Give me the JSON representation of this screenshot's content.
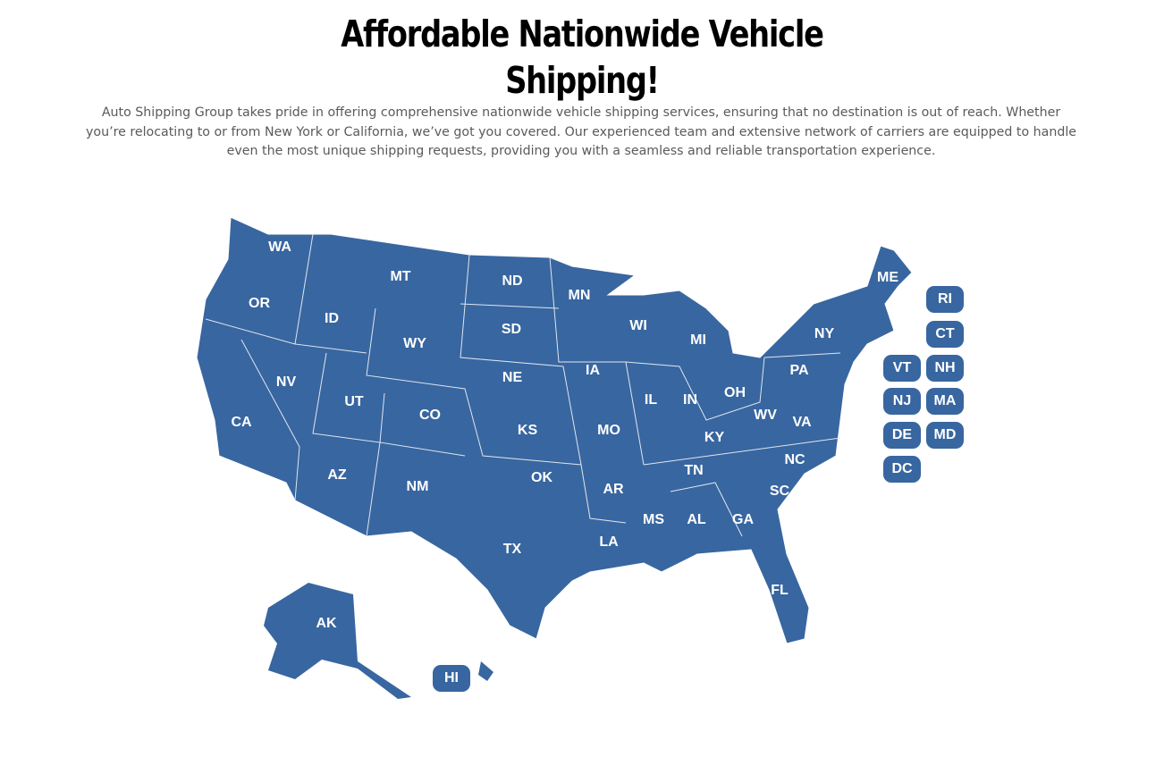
{
  "header": {
    "title_line1": "Affordable Nationwide Vehicle",
    "title_line2": "Shipping!",
    "description": "Auto Shipping Group takes pride in offering comprehensive nationwide vehicle shipping services, ensuring that no destination is out of reach. Whether you’re relocating to or from New York or California, we’ve got you covered. Our experienced team and extensive network of carriers are equipped to handle even the most unique shipping requests, providing you with a seamless and reliable transportation experience."
  },
  "map": {
    "fill_color": "#3866a0",
    "states": [
      "WA",
      "OR",
      "CA",
      "ID",
      "NV",
      "MT",
      "WY",
      "UT",
      "AZ",
      "CO",
      "NM",
      "ND",
      "SD",
      "NE",
      "KS",
      "OK",
      "TX",
      "MN",
      "IA",
      "MO",
      "AR",
      "LA",
      "WI",
      "IL",
      "MI",
      "IN",
      "KY",
      "TN",
      "MS",
      "AL",
      "OH",
      "WV",
      "VA",
      "NC",
      "SC",
      "GA",
      "FL",
      "PA",
      "NY",
      "ME",
      "AK"
    ],
    "badges": [
      "RI",
      "CT",
      "VT",
      "NH",
      "NJ",
      "MA",
      "DE",
      "MD",
      "DC",
      "HI"
    ]
  }
}
